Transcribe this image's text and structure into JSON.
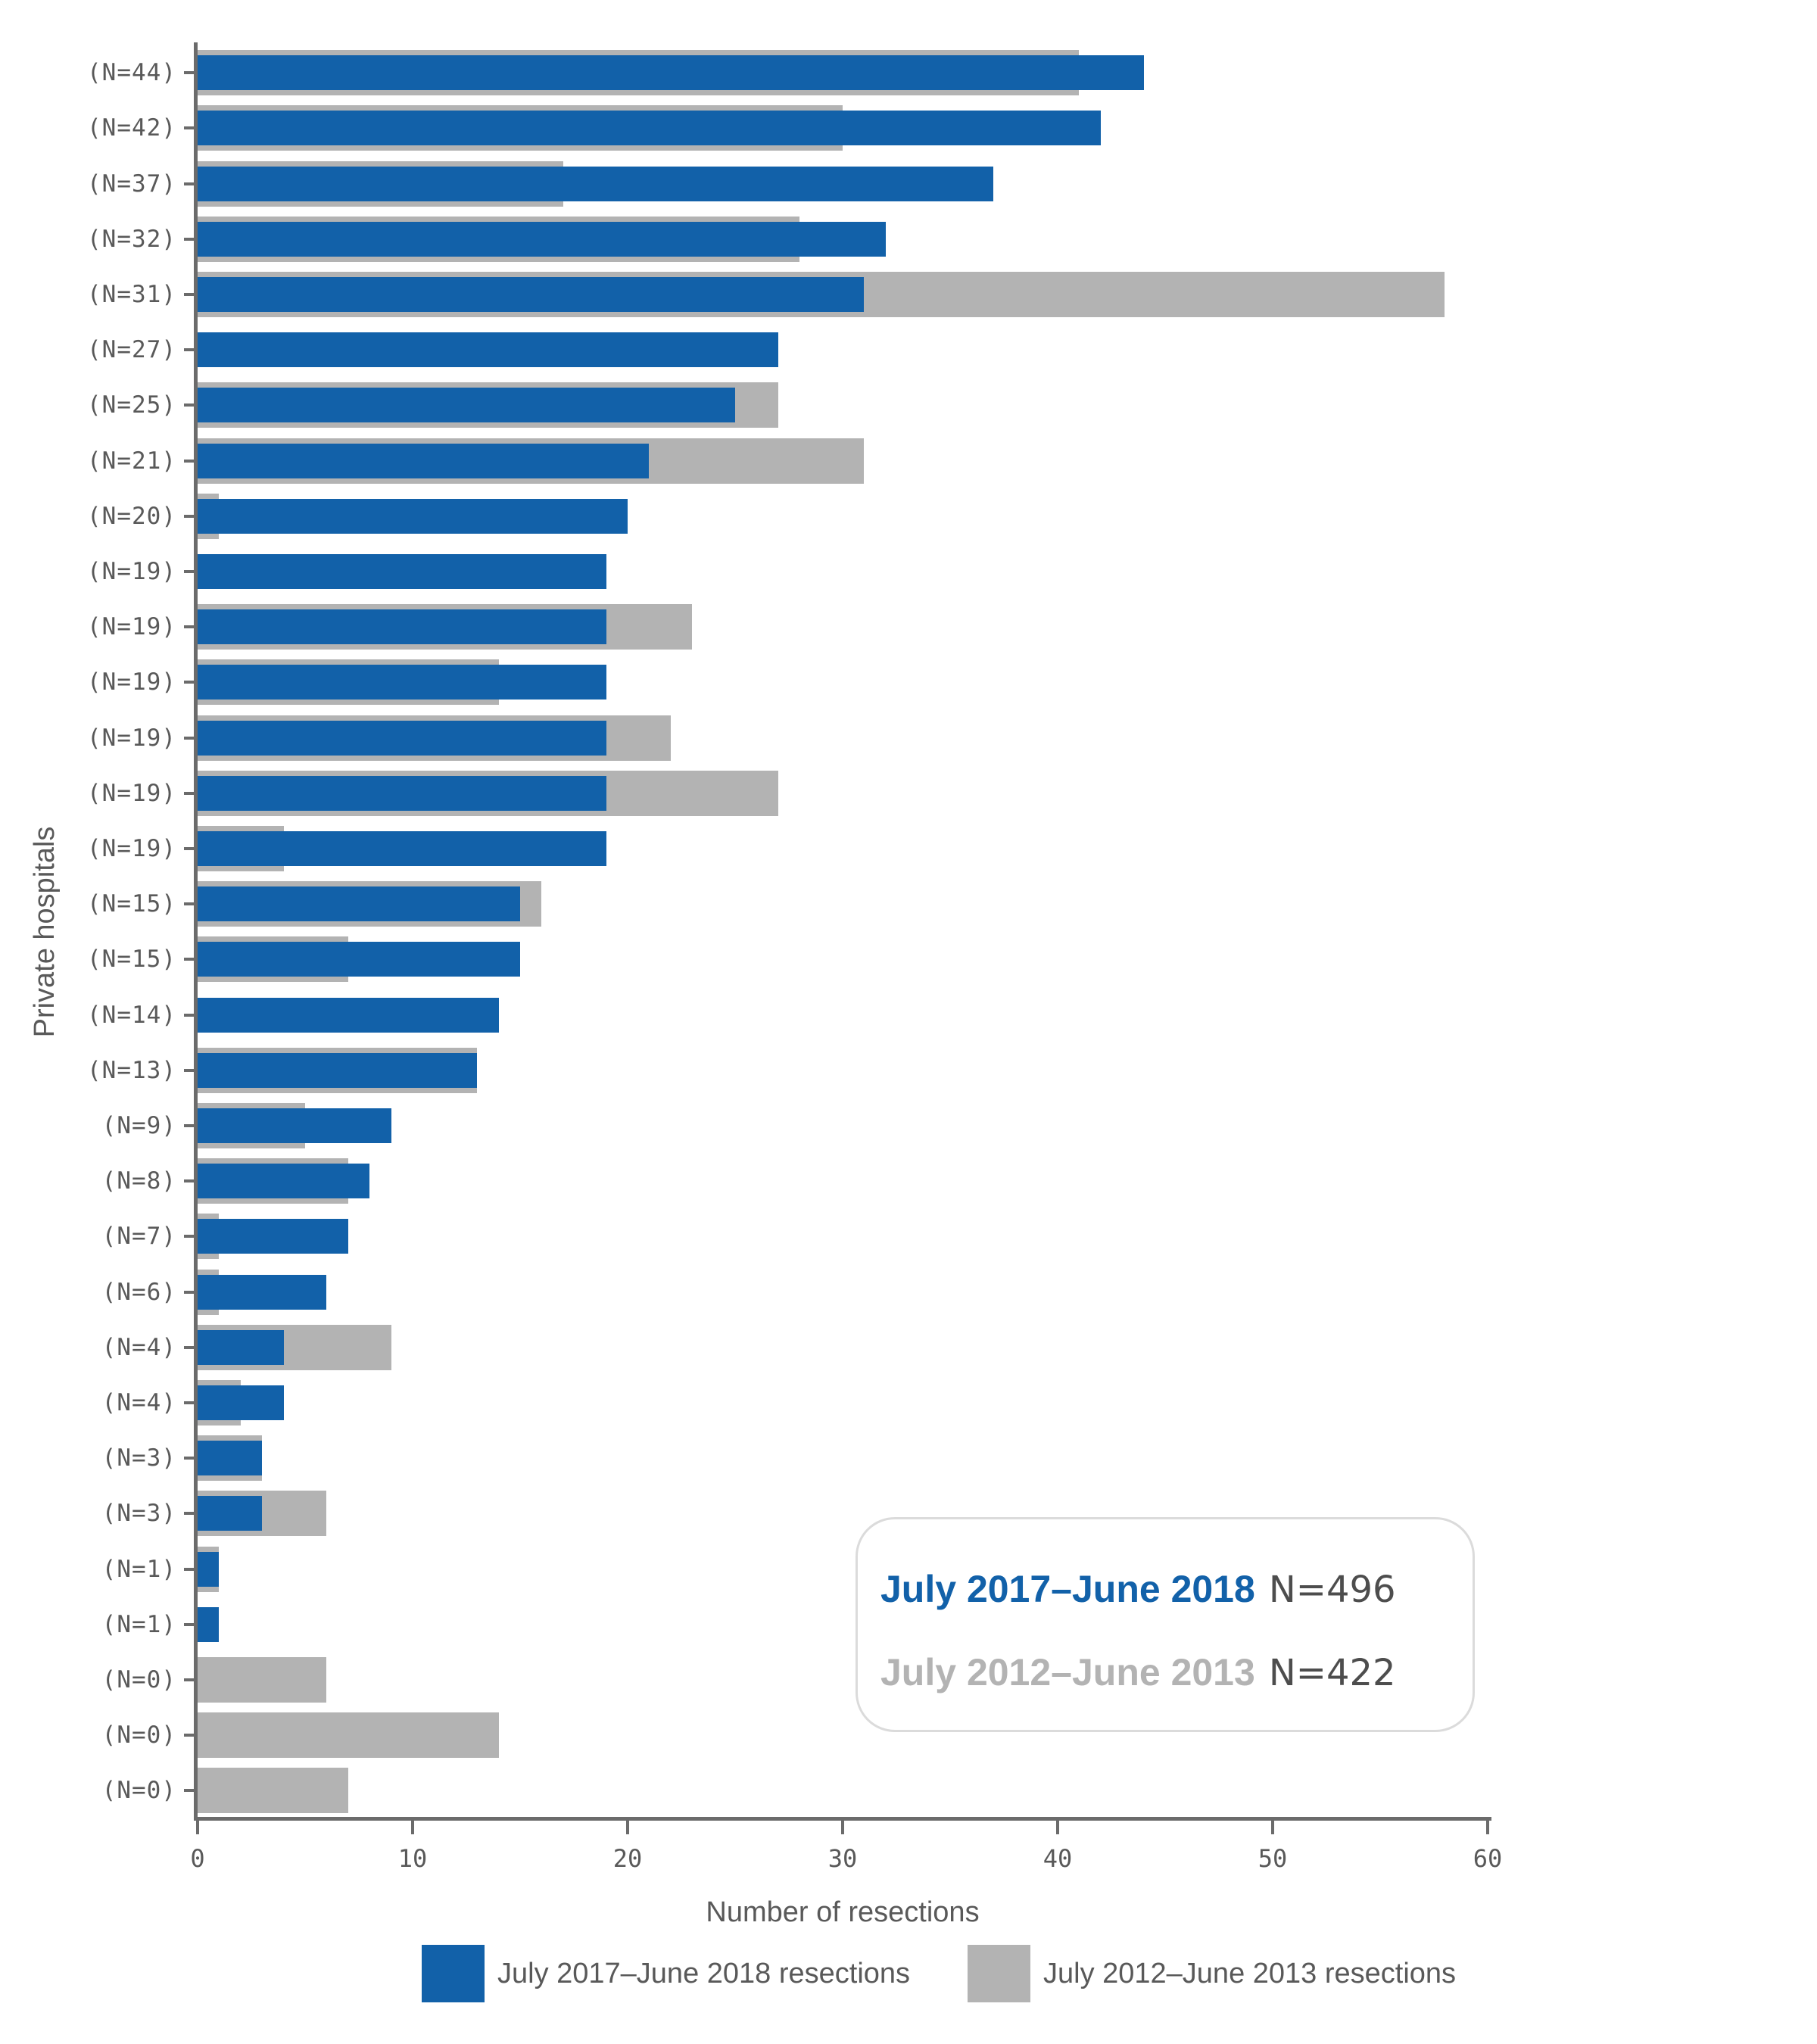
{
  "chart_data": {
    "type": "bar",
    "orientation": "horizontal",
    "title": "",
    "xlabel": "Number of resections",
    "ylabel": "Private hospitals",
    "xlim": [
      0,
      60
    ],
    "x_ticks": [
      0,
      10,
      20,
      30,
      40,
      50,
      60
    ],
    "grid": false,
    "legend_position": "bottom",
    "categories": [
      "(N=44)",
      "(N=42)",
      "(N=37)",
      "(N=32)",
      "(N=31)",
      "(N=27)",
      "(N=25)",
      "(N=21)",
      "(N=20)",
      "(N=19)",
      "(N=19)",
      "(N=19)",
      "(N=19)",
      "(N=19)",
      "(N=19)",
      "(N=15)",
      "(N=15)",
      "(N=14)",
      "(N=13)",
      "(N=9)",
      "(N=8)",
      "(N=7)",
      "(N=6)",
      "(N=4)",
      "(N=4)",
      "(N=3)",
      "(N=3)",
      "(N=1)",
      "(N=1)",
      "(N=0)",
      "(N=0)",
      "(N=0)"
    ],
    "series": [
      {
        "name": "July 2017–June 2018 resections",
        "color": "#1261A9",
        "values": [
          44,
          42,
          37,
          32,
          31,
          27,
          25,
          21,
          20,
          19,
          19,
          19,
          19,
          19,
          19,
          15,
          15,
          14,
          13,
          9,
          8,
          7,
          6,
          4,
          4,
          3,
          3,
          1,
          1,
          0,
          0,
          0
        ]
      },
      {
        "name": "July 2012–June 2013 resections",
        "color": "#B3B3B3",
        "values": [
          41,
          30,
          17,
          28,
          58,
          0,
          27,
          31,
          1,
          0,
          23,
          14,
          22,
          27,
          4,
          16,
          7,
          0,
          13,
          5,
          7,
          1,
          1,
          9,
          2,
          3,
          6,
          1,
          0,
          6,
          14,
          7
        ]
      }
    ]
  },
  "axis": {
    "x_title": "Number of resections",
    "y_title": "Private hospitals"
  },
  "inset_legend": {
    "line1_period": "July 2017–June 2018",
    "line1_n": "N=496",
    "line2_period": "July 2012–June 2013",
    "line2_n": "N=422"
  },
  "bottom_legend": {
    "item1": "July 2017–June 2018 resections",
    "item2": "July 2012–June 2013 resections"
  },
  "colors": {
    "accent_blue": "#1261A9",
    "series_gray": "#B3B3B3",
    "axis_gray": "#6B6B6B",
    "text_gray": "#595959",
    "n_value_gray": "#4D4D4D",
    "inset_border": "#DBDBDB"
  }
}
